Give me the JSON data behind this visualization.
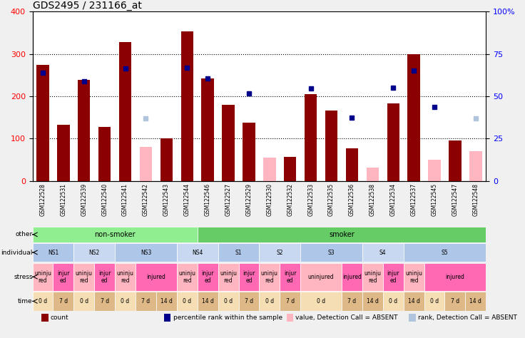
{
  "title": "GDS2495 / 231166_at",
  "samples": [
    "GSM122528",
    "GSM122531",
    "GSM122539",
    "GSM122540",
    "GSM122541",
    "GSM122542",
    "GSM122543",
    "GSM122544",
    "GSM122546",
    "GSM122527",
    "GSM122529",
    "GSM122530",
    "GSM122532",
    "GSM122533",
    "GSM122535",
    "GSM122536",
    "GSM122538",
    "GSM122534",
    "GSM122537",
    "GSM122545",
    "GSM122547",
    "GSM122548"
  ],
  "count_values": [
    275,
    133,
    238,
    127,
    328,
    null,
    100,
    353,
    243,
    180,
    138,
    null,
    57,
    205,
    167,
    77,
    null,
    183,
    300,
    null,
    96,
    null
  ],
  "count_absent": [
    null,
    null,
    null,
    null,
    null,
    80,
    null,
    null,
    null,
    null,
    null,
    55,
    null,
    null,
    null,
    null,
    32,
    null,
    null,
    50,
    null,
    70
  ],
  "rank_values": [
    255,
    null,
    235,
    null,
    265,
    null,
    null,
    268,
    243,
    null,
    207,
    null,
    null,
    218,
    null,
    150,
    null,
    220,
    260,
    175,
    null,
    null
  ],
  "rank_absent": [
    null,
    null,
    null,
    null,
    null,
    148,
    null,
    null,
    null,
    null,
    null,
    null,
    null,
    null,
    null,
    null,
    null,
    null,
    null,
    null,
    null,
    148
  ],
  "ylim_left": [
    0,
    400
  ],
  "ylim_right": [
    0,
    100
  ],
  "yticks_left": [
    0,
    100,
    200,
    300,
    400
  ],
  "yticks_right": [
    0,
    25,
    50,
    75,
    100
  ],
  "bar_width": 0.6,
  "other_row": {
    "non_smoker": {
      "start": 0,
      "end": 8,
      "label": "non-smoker",
      "color": "#90EE90"
    },
    "smoker": {
      "start": 8,
      "end": 22,
      "label": "smoker",
      "color": "#66CC66"
    }
  },
  "individual_row": [
    {
      "label": "NS1",
      "start": 0,
      "end": 2,
      "color": "#AEC6E8"
    },
    {
      "label": "NS2",
      "start": 2,
      "end": 4,
      "color": "#C8D8F0"
    },
    {
      "label": "NS3",
      "start": 4,
      "end": 7,
      "color": "#AEC6E8"
    },
    {
      "label": "NS4",
      "start": 7,
      "end": 9,
      "color": "#C8D8F0"
    },
    {
      "label": "S1",
      "start": 9,
      "end": 11,
      "color": "#AEC6E8"
    },
    {
      "label": "S2",
      "start": 11,
      "end": 13,
      "color": "#C8D8F0"
    },
    {
      "label": "S3",
      "start": 13,
      "end": 16,
      "color": "#AEC6E8"
    },
    {
      "label": "S4",
      "start": 16,
      "end": 18,
      "color": "#C8D8F0"
    },
    {
      "label": "S5",
      "start": 18,
      "end": 22,
      "color": "#AEC6E8"
    }
  ],
  "stress_row": [
    {
      "label": "uninju\nred",
      "start": 0,
      "end": 1,
      "color": "#FFB6C1"
    },
    {
      "label": "injur\ned",
      "start": 1,
      "end": 2,
      "color": "#FF69B4"
    },
    {
      "label": "uninju\nred",
      "start": 2,
      "end": 3,
      "color": "#FFB6C1"
    },
    {
      "label": "injur\ned",
      "start": 3,
      "end": 4,
      "color": "#FF69B4"
    },
    {
      "label": "uninju\nred",
      "start": 4,
      "end": 5,
      "color": "#FFB6C1"
    },
    {
      "label": "injured",
      "start": 5,
      "end": 7,
      "color": "#FF69B4"
    },
    {
      "label": "uninju\nred",
      "start": 7,
      "end": 8,
      "color": "#FFB6C1"
    },
    {
      "label": "injur\ned",
      "start": 8,
      "end": 9,
      "color": "#FF69B4"
    },
    {
      "label": "uninju\nred",
      "start": 9,
      "end": 10,
      "color": "#FFB6C1"
    },
    {
      "label": "injur\ned",
      "start": 10,
      "end": 11,
      "color": "#FF69B4"
    },
    {
      "label": "uninju\nred",
      "start": 11,
      "end": 12,
      "color": "#FFB6C1"
    },
    {
      "label": "injur\ned",
      "start": 12,
      "end": 13,
      "color": "#FF69B4"
    },
    {
      "label": "uninjured",
      "start": 13,
      "end": 15,
      "color": "#FFB6C1"
    },
    {
      "label": "injured",
      "start": 15,
      "end": 16,
      "color": "#FF69B4"
    },
    {
      "label": "uninju\nred",
      "start": 16,
      "end": 17,
      "color": "#FFB6C1"
    },
    {
      "label": "injur\ned",
      "start": 17,
      "end": 18,
      "color": "#FF69B4"
    },
    {
      "label": "uninju\nred",
      "start": 18,
      "end": 19,
      "color": "#FFB6C1"
    },
    {
      "label": "injured",
      "start": 19,
      "end": 22,
      "color": "#FF69B4"
    }
  ],
  "time_row": [
    {
      "label": "0 d",
      "start": 0,
      "end": 1,
      "color": "#F5DEB3"
    },
    {
      "label": "7 d",
      "start": 1,
      "end": 2,
      "color": "#DEB887"
    },
    {
      "label": "0 d",
      "start": 2,
      "end": 3,
      "color": "#F5DEB3"
    },
    {
      "label": "7 d",
      "start": 3,
      "end": 4,
      "color": "#DEB887"
    },
    {
      "label": "0 d",
      "start": 4,
      "end": 5,
      "color": "#F5DEB3"
    },
    {
      "label": "7 d",
      "start": 5,
      "end": 6,
      "color": "#DEB887"
    },
    {
      "label": "14 d",
      "start": 6,
      "end": 7,
      "color": "#DEB887"
    },
    {
      "label": "0 d",
      "start": 7,
      "end": 8,
      "color": "#F5DEB3"
    },
    {
      "label": "14 d",
      "start": 8,
      "end": 9,
      "color": "#DEB887"
    },
    {
      "label": "0 d",
      "start": 9,
      "end": 10,
      "color": "#F5DEB3"
    },
    {
      "label": "7 d",
      "start": 10,
      "end": 11,
      "color": "#DEB887"
    },
    {
      "label": "0 d",
      "start": 11,
      "end": 12,
      "color": "#F5DEB3"
    },
    {
      "label": "7 d",
      "start": 12,
      "end": 13,
      "color": "#DEB887"
    },
    {
      "label": "0 d",
      "start": 13,
      "end": 15,
      "color": "#F5DEB3"
    },
    {
      "label": "7 d",
      "start": 15,
      "end": 16,
      "color": "#DEB887"
    },
    {
      "label": "14 d",
      "start": 16,
      "end": 17,
      "color": "#DEB887"
    },
    {
      "label": "0 d",
      "start": 17,
      "end": 18,
      "color": "#F5DEB3"
    },
    {
      "label": "14 d",
      "start": 18,
      "end": 19,
      "color": "#DEB887"
    },
    {
      "label": "0 d",
      "start": 19,
      "end": 20,
      "color": "#F5DEB3"
    },
    {
      "label": "7 d",
      "start": 20,
      "end": 21,
      "color": "#DEB887"
    },
    {
      "label": "14 d",
      "start": 21,
      "end": 22,
      "color": "#DEB887"
    }
  ],
  "legend": [
    {
      "label": "count",
      "color": "#8B0000",
      "marker": "s"
    },
    {
      "label": "percentile rank within the sample",
      "color": "#00008B",
      "marker": "s"
    },
    {
      "label": "value, Detection Call = ABSENT",
      "color": "#FFB6C1",
      "marker": "s"
    },
    {
      "label": "rank, Detection Call = ABSENT",
      "color": "#B0C4DE",
      "marker": "s"
    }
  ],
  "background_color": "#F0F0F0",
  "plot_bg": "#FFFFFF"
}
